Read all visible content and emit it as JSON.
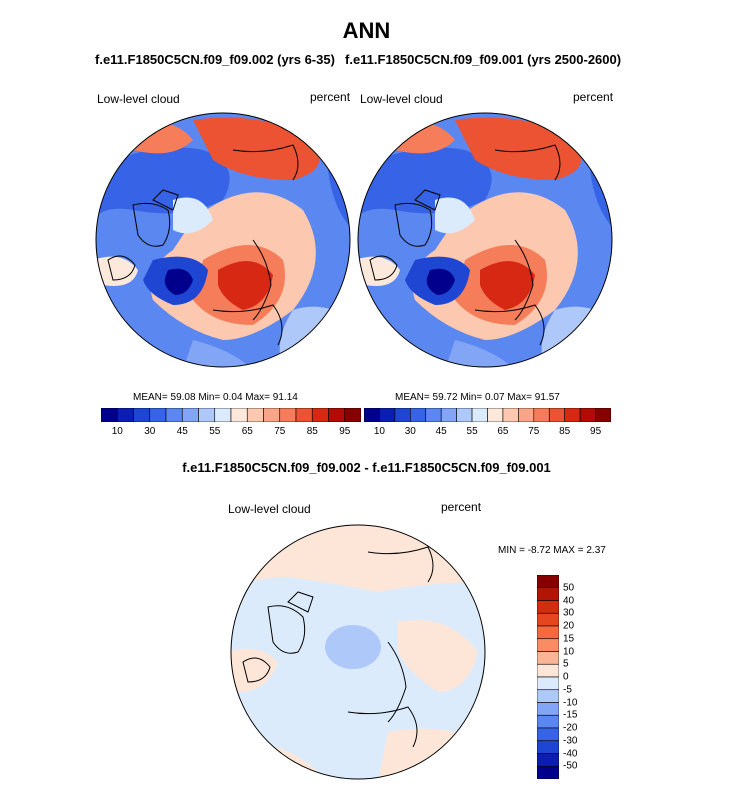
{
  "main_title": "ANN",
  "panels": [
    {
      "case_title": "f.e11.F1850C5CN.f09_f09.002 (yrs 6-35)",
      "left_label": "Low-level cloud",
      "right_label": "percent",
      "stats": "MEAN=  59.08  Min=   0.04  Max=  91.14"
    },
    {
      "case_title": "f.e11.F1850C5CN.f09_f09.001 (yrs 2500-2600)",
      "left_label": "Low-level cloud",
      "right_label": "percent",
      "stats": "MEAN=  59.72  Min=   0.07  Max=  91.57"
    }
  ],
  "diff": {
    "title": "f.e11.F1850C5CN.f09_f09.002 - f.e11.F1850C5CN.f09_f09.001",
    "left_label": "Low-level cloud",
    "right_label": "percent",
    "stats": "MIN =  -8.72 MAX =   2.37"
  },
  "colorbar_top": {
    "colors": [
      "#00008c",
      "#0a1eb4",
      "#1e46d2",
      "#3764e6",
      "#5a87f0",
      "#82a5f5",
      "#afc8fa",
      "#dcebfc",
      "#fde8dc",
      "#fcc8b0",
      "#f9a587",
      "#f57d5a",
      "#eb5332",
      "#d72814",
      "#b40a05",
      "#870000"
    ],
    "tick_labels": [
      "10",
      "30",
      "45",
      "55",
      "65",
      "75",
      "85",
      "95"
    ]
  },
  "colorbar_diff": {
    "colors": [
      "#870000",
      "#b41405",
      "#d22d0f",
      "#e6461e",
      "#f5693c",
      "#fa8c64",
      "#fcb496",
      "#fde6d7",
      "#dcebfc",
      "#afc8fa",
      "#82a5f5",
      "#5a87f0",
      "#3764e6",
      "#1e46d2",
      "#0a1eb4",
      "#00008c"
    ],
    "tick_labels": [
      "50",
      "40",
      "30",
      "20",
      "15",
      "10",
      "5",
      "0",
      "-5",
      "-10",
      "-15",
      "-20",
      "-30",
      "-40",
      "-50"
    ]
  }
}
